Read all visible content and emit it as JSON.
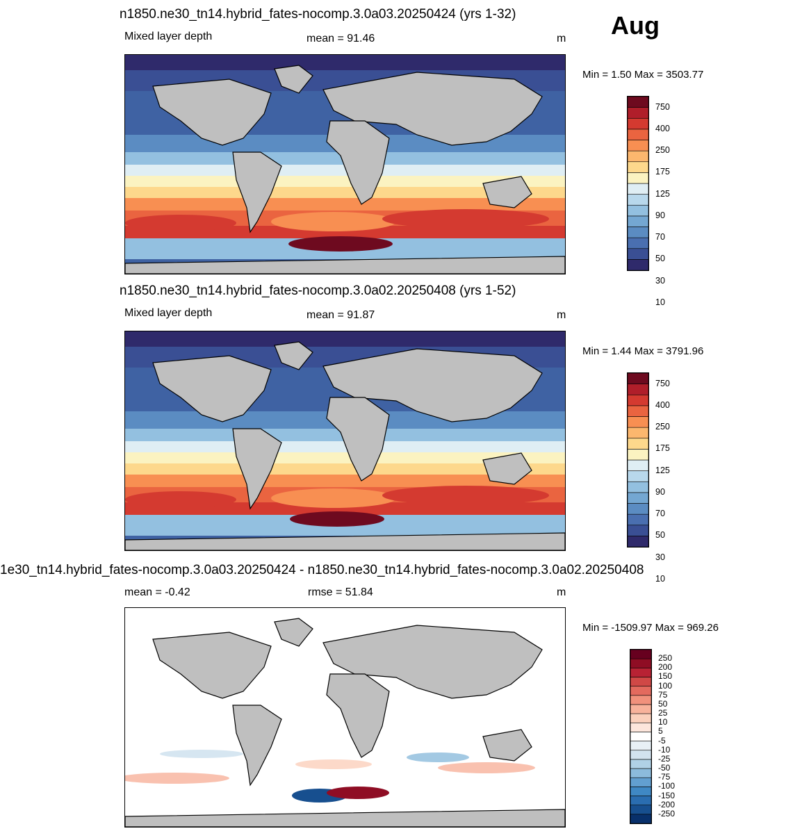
{
  "month": "Aug",
  "panels": [
    {
      "id": "p1",
      "title": "n1850.ne30_tn14.hybrid_fates-nocomp.3.0a03.20250424 (yrs 1-32)",
      "left_label": "Mixed layer depth",
      "center_label": "mean =  91.46",
      "units": "m",
      "minmax": "Min =    1.50 Max = 3503.77",
      "colorbar": {
        "colors": [
          "#2f2a6b",
          "#3a4f94",
          "#4a6fb0",
          "#5b8cc2",
          "#74a7d2",
          "#93c0e0",
          "#b8d8ec",
          "#dfeef4",
          "#fbf3c1",
          "#fdd88c",
          "#fcb76e",
          "#f88f52",
          "#ea6440",
          "#d43a30",
          "#b01e2a",
          "#6e0a1f"
        ],
        "labels": [
          "750",
          "400",
          "250",
          "175",
          "125",
          "90",
          "70",
          "50",
          "30",
          "10"
        ]
      }
    },
    {
      "id": "p2",
      "title": "n1850.ne30_tn14.hybrid_fates-nocomp.3.0a02.20250408 (yrs 1-52)",
      "left_label": "Mixed layer depth",
      "center_label": "mean =  91.87",
      "units": "m",
      "minmax": "Min =    1.44 Max = 3791.96",
      "colorbar": {
        "colors": [
          "#2f2a6b",
          "#3a4f94",
          "#4a6fb0",
          "#5b8cc2",
          "#74a7d2",
          "#93c0e0",
          "#b8d8ec",
          "#dfeef4",
          "#fbf3c1",
          "#fdd88c",
          "#fcb76e",
          "#f88f52",
          "#ea6440",
          "#d43a30",
          "#b01e2a",
          "#6e0a1f"
        ],
        "labels": [
          "750",
          "400",
          "250",
          "175",
          "125",
          "90",
          "70",
          "50",
          "30",
          "10"
        ]
      }
    },
    {
      "id": "p3",
      "title": "1e30_tn14.hybrid_fates-nocomp.3.0a03.20250424 - n1850.ne30_tn14.hybrid_fates-nocomp.3.0a02.20250408",
      "left_label": "mean =  -0.42",
      "center_label": "rmse =  51.84",
      "units": "m",
      "minmax": "Min = -1509.97 Max = 969.26",
      "colorbar": {
        "colors": [
          "#08306b",
          "#174f8f",
          "#2a6db0",
          "#3f88c4",
          "#629fd0",
          "#8cbbdc",
          "#b0d1e6",
          "#d2e3ef",
          "#e8f0f6",
          "#ffffff",
          "#fde6dc",
          "#fbd0bc",
          "#f8b29b",
          "#f1917c",
          "#e36a5e",
          "#d04846",
          "#b82234",
          "#8f0d24",
          "#67001f"
        ],
        "labels": [
          "250",
          "200",
          "150",
          "100",
          "75",
          "50",
          "25",
          "10",
          "5",
          "-5",
          "-10",
          "-25",
          "-50",
          "-75",
          "-100",
          "-150",
          "-200",
          "-250"
        ]
      }
    }
  ]
}
